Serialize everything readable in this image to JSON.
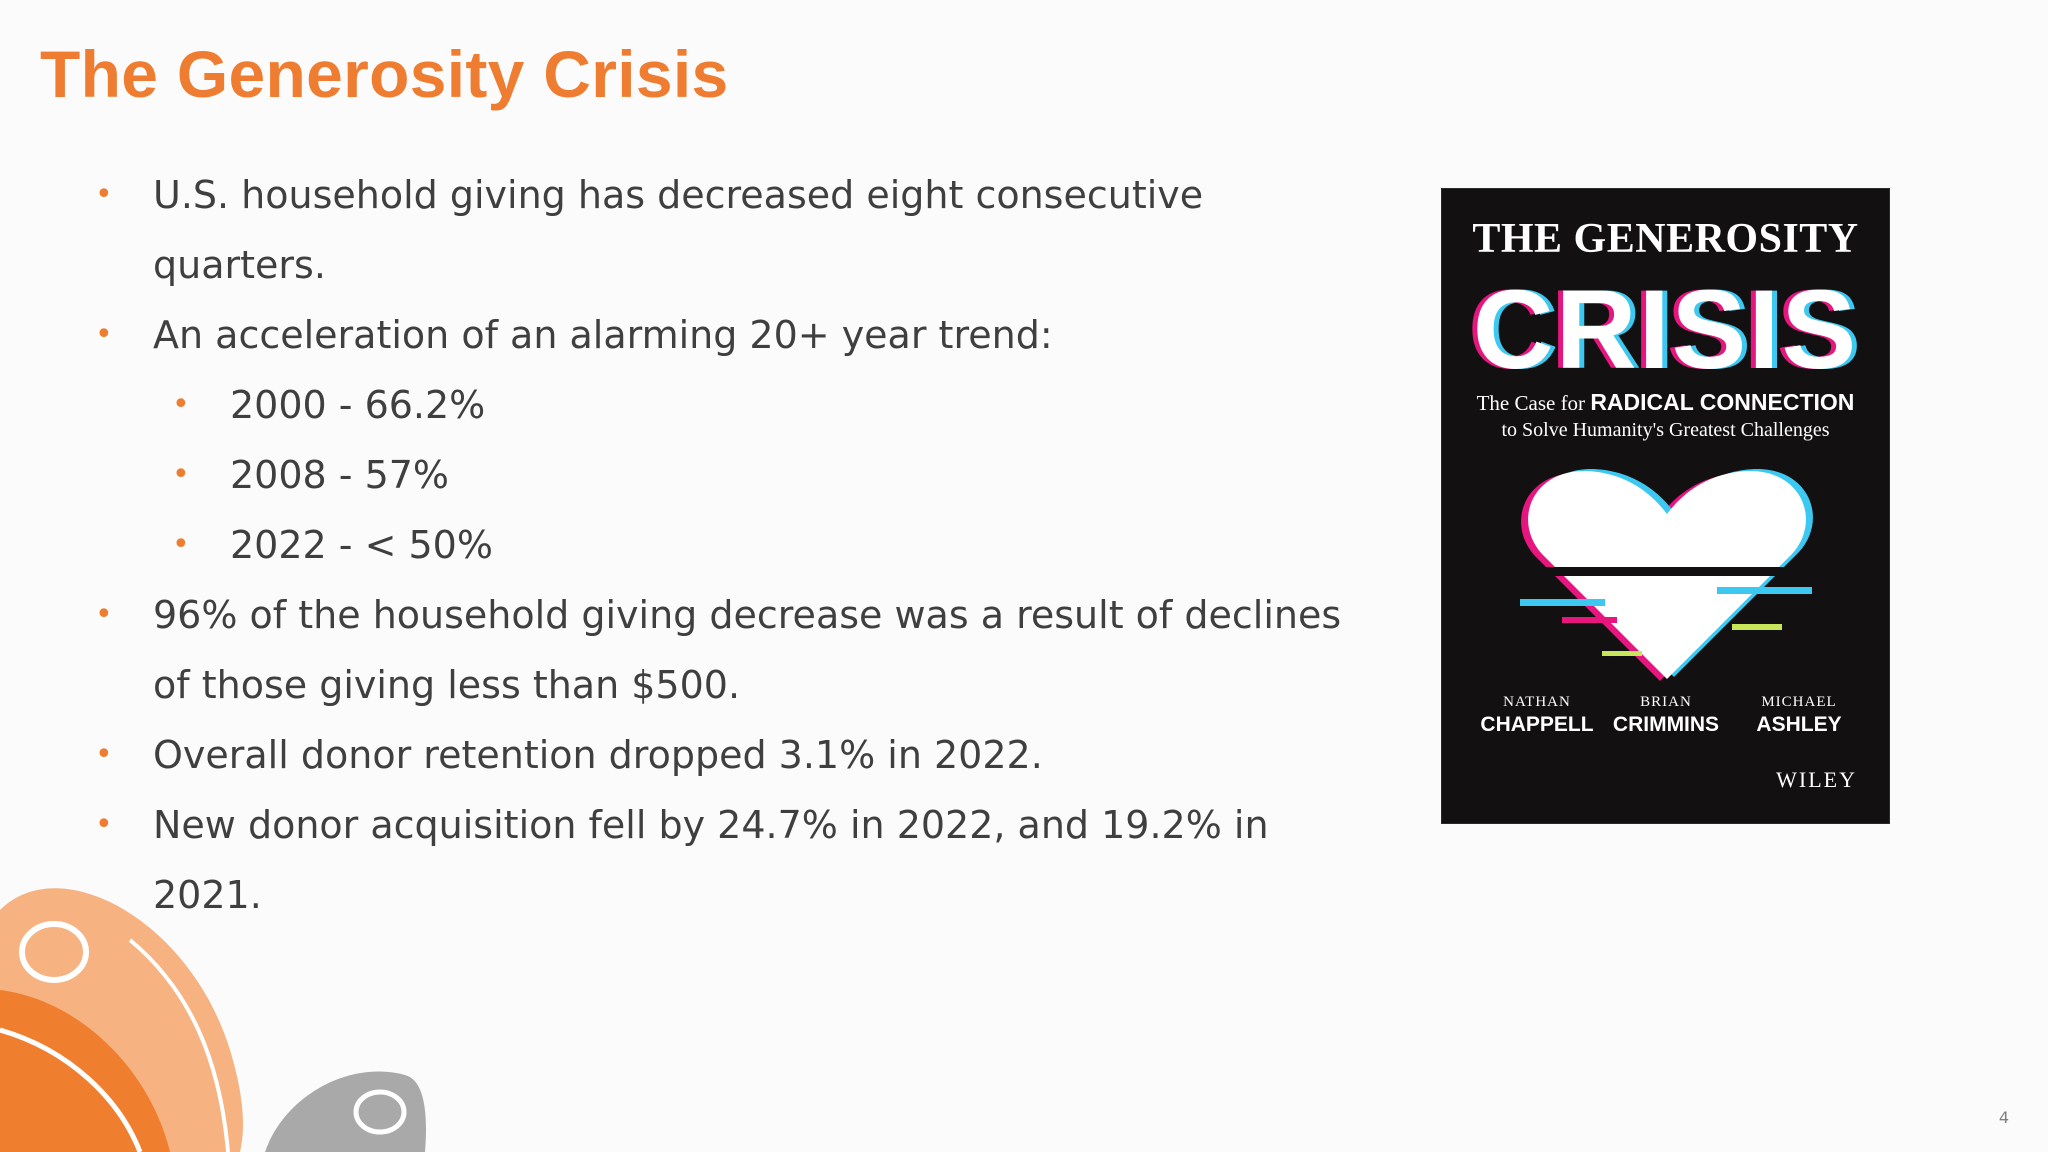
{
  "slide": {
    "title": "The Generosity Crisis",
    "bullets": [
      {
        "level": 1,
        "text": "U.S. household giving has decreased eight consecutive quarters."
      },
      {
        "level": 1,
        "text": "An acceleration of an alarming 20+ year trend:"
      },
      {
        "level": 2,
        "text": "2000 - 66.2%"
      },
      {
        "level": 2,
        "text": "2008 - 57%"
      },
      {
        "level": 2,
        "text": "2022 - < 50%"
      },
      {
        "level": 1,
        "text": "96% of the household giving decrease was a result of declines of those giving less than $500."
      },
      {
        "level": 1,
        "text": "Overall donor retention dropped 3.1% in 2022."
      },
      {
        "level": 1,
        "text": "New donor acquisition fell by 24.7% in 2022, and 19.2% in 2021."
      }
    ],
    "bullet_symbol": "•",
    "page_number": "4",
    "accent_color": "#ee7d31"
  },
  "book_cover": {
    "title_top": "THE GENEROSITY",
    "title_main": "CRISIS",
    "subtitle_prefix": "The Case for ",
    "subtitle_strong": "RADICAL CONNECTION",
    "subtitle_line2": "to Solve Humanity's Greatest Challenges",
    "authors": [
      {
        "first": "NATHAN",
        "last": "CHAPPELL"
      },
      {
        "first": "BRIAN",
        "last": "CRIMMINS"
      },
      {
        "first": "MICHAEL",
        "last": "ASHLEY"
      }
    ],
    "publisher": "WILEY",
    "heart_icon": "glitch-heart-icon"
  }
}
